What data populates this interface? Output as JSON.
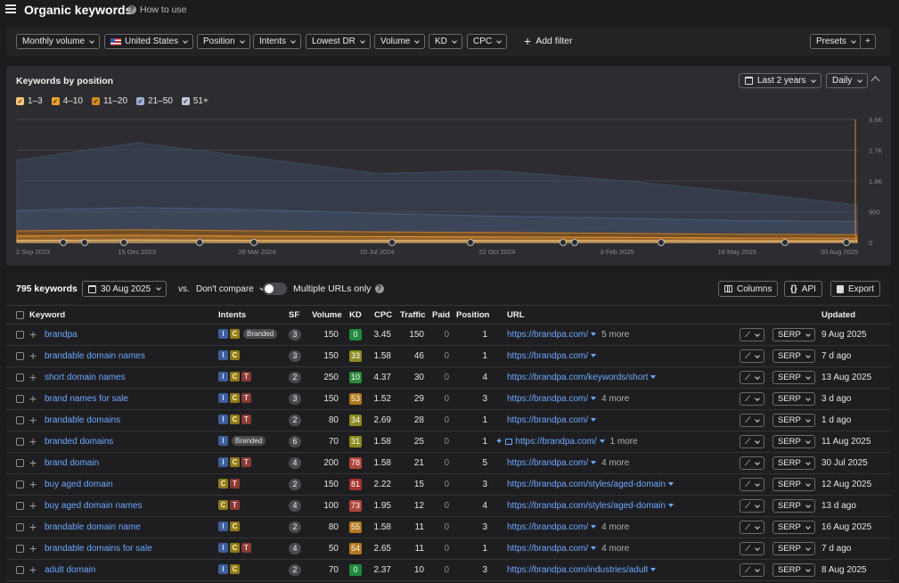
{
  "header": {
    "title": "Organic keywords",
    "how_to_use": "How to use"
  },
  "filters": {
    "monthly_volume": "Monthly volume",
    "country": "United States",
    "position": "Position",
    "intents": "Intents",
    "lowest_dr": "Lowest DR",
    "volume": "Volume",
    "kd": "KD",
    "cpc": "CPC",
    "add_filter": "Add filter",
    "presets": "Presets",
    "add": "+"
  },
  "chart_panel": {
    "title": "Keywords by position",
    "range_label": "Last 2 years",
    "interval_label": "Daily",
    "legend": [
      {
        "label": "1–3",
        "color": "#f7c676"
      },
      {
        "label": "4–10",
        "color": "#f0a030"
      },
      {
        "label": "11–20",
        "color": "#d08a20"
      },
      {
        "label": "21–50",
        "color": "#9ab0d0"
      },
      {
        "label": "51+",
        "color": "#c0c8d8"
      }
    ]
  },
  "chart_data": {
    "type": "area",
    "x_ticks": [
      "2 Sep 2023",
      "15 Dec 2023",
      "28 Mar 2024",
      "10 Jul 2024",
      "22 Oct 2024",
      "3 Feb 2025",
      "18 May 2025",
      "30 Aug 2025"
    ],
    "y_ticks": [
      "0",
      "900",
      "1.8K",
      "2.7K",
      "3.6K"
    ],
    "ylim": [
      0,
      3600
    ],
    "series": [
      {
        "name": "1–3",
        "values": [
          60,
          70,
          60,
          60,
          60,
          60,
          50,
          50
        ]
      },
      {
        "name": "4–10",
        "values": [
          130,
          140,
          120,
          110,
          100,
          90,
          80,
          80
        ]
      },
      {
        "name": "11–20",
        "values": [
          150,
          160,
          160,
          140,
          130,
          120,
          110,
          100
        ]
      },
      {
        "name": "21–50",
        "values": [
          600,
          650,
          620,
          540,
          480,
          440,
          400,
          390
        ]
      },
      {
        "name": "51+",
        "values": [
          1460,
          1900,
          1510,
          1170,
          1330,
          1110,
          840,
          480
        ]
      }
    ]
  },
  "table_panel": {
    "count": "795 keywords",
    "date": "30 Aug 2025",
    "vs": "vs.",
    "compare": "Don't compare",
    "multiple_urls": "Multiple URLs only",
    "columns_btn": "Columns",
    "api_btn": "API",
    "export_btn": "Export"
  },
  "columns": {
    "keyword": "Keyword",
    "intents": "Intents",
    "sf": "SF",
    "volume": "Volume",
    "kd": "KD",
    "cpc": "CPC",
    "traffic": "Traffic",
    "paid": "Paid",
    "position": "Position",
    "url": "URL",
    "updated": "Updated"
  },
  "serp_label": "SERP",
  "rows": [
    {
      "keyword": "brandpa",
      "intents": [
        "I",
        "C"
      ],
      "branded": "Branded",
      "sf": "3",
      "volume": "150",
      "kd": "0",
      "kd_color": "#1f8a3a",
      "cpc": "3.45",
      "traffic": "150",
      "paid": "0",
      "position": "1",
      "url": "https://brandpa.com/",
      "more": "5 more",
      "updated": "9 Aug 2025"
    },
    {
      "keyword": "brandable domain names",
      "intents": [
        "I",
        "C"
      ],
      "sf": "3",
      "volume": "150",
      "kd": "33",
      "kd_color": "#8c8a1e",
      "cpc": "1.58",
      "traffic": "46",
      "paid": "0",
      "position": "1",
      "url": "https://brandpa.com/",
      "updated": "7 d ago"
    },
    {
      "keyword": "short domain names",
      "intents": [
        "I",
        "C",
        "T"
      ],
      "sf": "2",
      "volume": "250",
      "kd": "10",
      "kd_color": "#2d8a3a",
      "cpc": "4.37",
      "traffic": "30",
      "paid": "0",
      "position": "4",
      "url": "https://brandpa.com/keywords/short",
      "updated": "13 Aug 2025"
    },
    {
      "keyword": "brand names for sale",
      "intents": [
        "I",
        "C",
        "T"
      ],
      "sf": "3",
      "volume": "150",
      "kd": "53",
      "kd_color": "#b3771c",
      "cpc": "1.52",
      "traffic": "29",
      "paid": "0",
      "position": "3",
      "url": "https://brandpa.com/",
      "more": "4 more",
      "updated": "3 d ago"
    },
    {
      "keyword": "brandable domains",
      "intents": [
        "I",
        "C",
        "T"
      ],
      "sf": "2",
      "volume": "80",
      "kd": "34",
      "kd_color": "#8c8a1e",
      "cpc": "2.69",
      "traffic": "28",
      "paid": "0",
      "position": "1",
      "url": "https://brandpa.com/",
      "updated": "1 d ago"
    },
    {
      "keyword": "branded domains",
      "intents": [
        "I"
      ],
      "branded": "Branded",
      "sf": "6",
      "volume": "70",
      "kd": "31",
      "kd_color": "#8c8a1e",
      "cpc": "1.58",
      "traffic": "25",
      "paid": "0",
      "position": "1",
      "url": "https://brandpa.com/",
      "more": "1 more",
      "updated": "11 Aug 2025",
      "sparkle": true
    },
    {
      "keyword": "brand domain",
      "intents": [
        "I",
        "C",
        "T"
      ],
      "sf": "4",
      "volume": "200",
      "kd": "78",
      "kd_color": "#b0463a",
      "cpc": "1.58",
      "traffic": "21",
      "paid": "0",
      "position": "5",
      "url": "https://brandpa.com/",
      "more": "4 more",
      "updated": "30 Jul 2025"
    },
    {
      "keyword": "buy aged domain",
      "intents": [
        "C",
        "T"
      ],
      "sf": "2",
      "volume": "150",
      "kd": "81",
      "kd_color": "#a8302e",
      "cpc": "2.22",
      "traffic": "15",
      "paid": "0",
      "position": "3",
      "url": "https://brandpa.com/styles/aged-domain",
      "updated": "12 Aug 2025"
    },
    {
      "keyword": "buy aged domain names",
      "intents": [
        "C",
        "T"
      ],
      "sf": "4",
      "volume": "100",
      "kd": "73",
      "kd_color": "#b0463a",
      "cpc": "1.95",
      "traffic": "12",
      "paid": "0",
      "position": "4",
      "url": "https://brandpa.com/styles/aged-domain",
      "updated": "13 d ago"
    },
    {
      "keyword": "brandable domain name",
      "intents": [
        "I",
        "C"
      ],
      "sf": "2",
      "volume": "80",
      "kd": "55",
      "kd_color": "#b3771c",
      "cpc": "1.58",
      "traffic": "11",
      "paid": "0",
      "position": "3",
      "url": "https://brandpa.com/",
      "more": "4 more",
      "updated": "16 Aug 2025"
    },
    {
      "keyword": "brandable domains for sale",
      "intents": [
        "I",
        "C",
        "T"
      ],
      "sf": "4",
      "volume": "50",
      "kd": "54",
      "kd_color": "#b3771c",
      "cpc": "2.65",
      "traffic": "11",
      "paid": "0",
      "position": "1",
      "url": "https://brandpa.com/",
      "more": "4 more",
      "updated": "7 d ago"
    },
    {
      "keyword": "adult domain",
      "intents": [
        "I",
        "C"
      ],
      "sf": "2",
      "volume": "70",
      "kd": "0",
      "kd_color": "#1f8a3a",
      "cpc": "2.37",
      "traffic": "10",
      "paid": "0",
      "position": "3",
      "url": "https://brandpa.com/industries/adult",
      "updated": "8 Aug 2025"
    }
  ]
}
